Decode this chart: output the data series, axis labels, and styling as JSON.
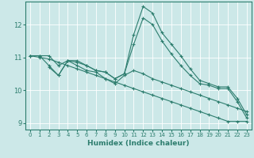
{
  "xlabel": "Humidex (Indice chaleur)",
  "ylabel": "",
  "background_color": "#cce8e8",
  "grid_color": "#ffffff",
  "line_color": "#2d7d6e",
  "xlim": [
    -0.5,
    23.5
  ],
  "ylim": [
    8.8,
    12.7
  ],
  "yticks": [
    9,
    10,
    11,
    12
  ],
  "xticks": [
    0,
    1,
    2,
    3,
    4,
    5,
    6,
    7,
    8,
    9,
    10,
    11,
    12,
    13,
    14,
    15,
    16,
    17,
    18,
    19,
    20,
    21,
    22,
    23
  ],
  "series": [
    {
      "x": [
        0,
        1,
        2,
        3,
        4,
        5,
        6,
        7,
        8,
        9,
        10,
        11,
        12,
        13,
        14,
        15,
        16,
        17,
        18,
        19,
        20,
        21,
        22,
        23
      ],
      "y": [
        11.05,
        11.05,
        11.05,
        10.75,
        10.9,
        10.9,
        10.75,
        10.6,
        10.55,
        10.35,
        10.5,
        11.7,
        12.55,
        12.35,
        11.75,
        11.4,
        11.05,
        10.65,
        10.3,
        10.2,
        10.1,
        10.1,
        9.75,
        9.25
      ]
    },
    {
      "x": [
        0,
        1,
        2,
        3,
        4,
        5,
        6,
        7,
        8,
        9,
        10,
        11,
        12,
        13,
        14,
        15,
        16,
        17,
        18,
        19,
        20,
        21,
        22,
        23
      ],
      "y": [
        11.05,
        11.05,
        10.75,
        10.45,
        10.9,
        10.85,
        10.75,
        10.6,
        10.55,
        10.35,
        10.5,
        11.4,
        12.2,
        12.0,
        11.5,
        11.1,
        10.75,
        10.45,
        10.2,
        10.15,
        10.05,
        10.05,
        9.65,
        9.15
      ]
    },
    {
      "x": [
        0,
        1,
        2,
        3,
        4,
        5,
        6,
        7,
        8,
        9,
        10,
        11,
        12,
        13,
        14,
        15,
        16,
        17,
        18,
        19,
        20,
        21,
        22,
        23
      ],
      "y": [
        11.05,
        11.0,
        10.95,
        10.85,
        10.75,
        10.65,
        10.55,
        10.45,
        10.35,
        10.25,
        10.15,
        10.05,
        9.95,
        9.85,
        9.75,
        9.65,
        9.55,
        9.45,
        9.35,
        9.25,
        9.15,
        9.05,
        9.05,
        9.05
      ]
    },
    {
      "x": [
        2,
        3,
        4,
        5,
        6,
        7,
        8,
        9,
        10,
        11,
        12,
        13,
        14,
        15,
        16,
        17,
        18,
        19,
        20,
        21,
        22,
        23
      ],
      "y": [
        10.7,
        10.45,
        10.9,
        10.75,
        10.6,
        10.55,
        10.35,
        10.2,
        10.45,
        10.6,
        10.5,
        10.35,
        10.25,
        10.15,
        10.05,
        9.95,
        9.85,
        9.75,
        9.65,
        9.55,
        9.45,
        9.35
      ]
    }
  ]
}
